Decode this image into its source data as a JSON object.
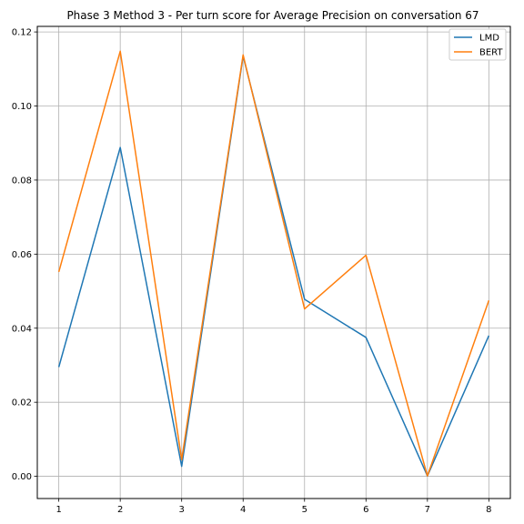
{
  "chart_data": {
    "type": "line",
    "title": "Phase 3 Method 3 - Per turn score for Average Precision on conversation 67",
    "xlabel": "",
    "ylabel": "",
    "x": [
      1,
      2,
      3,
      4,
      5,
      6,
      7,
      8
    ],
    "xlim": [
      0.65,
      8.35
    ],
    "ylim": [
      -0.006,
      0.1215
    ],
    "xticks": [
      1,
      2,
      3,
      4,
      5,
      6,
      7,
      8
    ],
    "yticks": [
      0.0,
      0.02,
      0.04,
      0.06,
      0.08,
      0.1,
      0.12
    ],
    "ytick_labels": [
      "0.00",
      "0.02",
      "0.04",
      "0.06",
      "0.08",
      "0.10",
      "0.12"
    ],
    "grid": true,
    "legend_position": "top-right",
    "series": [
      {
        "name": "LMD",
        "color": "#1f77b4",
        "values": [
          0.0295,
          0.0888,
          0.0027,
          0.1135,
          0.0478,
          0.0375,
          0.0001,
          0.038
        ]
      },
      {
        "name": "BERT",
        "color": "#ff7f0e",
        "values": [
          0.0552,
          0.1148,
          0.0045,
          0.1138,
          0.0452,
          0.0597,
          0.0001,
          0.0475
        ]
      }
    ]
  }
}
